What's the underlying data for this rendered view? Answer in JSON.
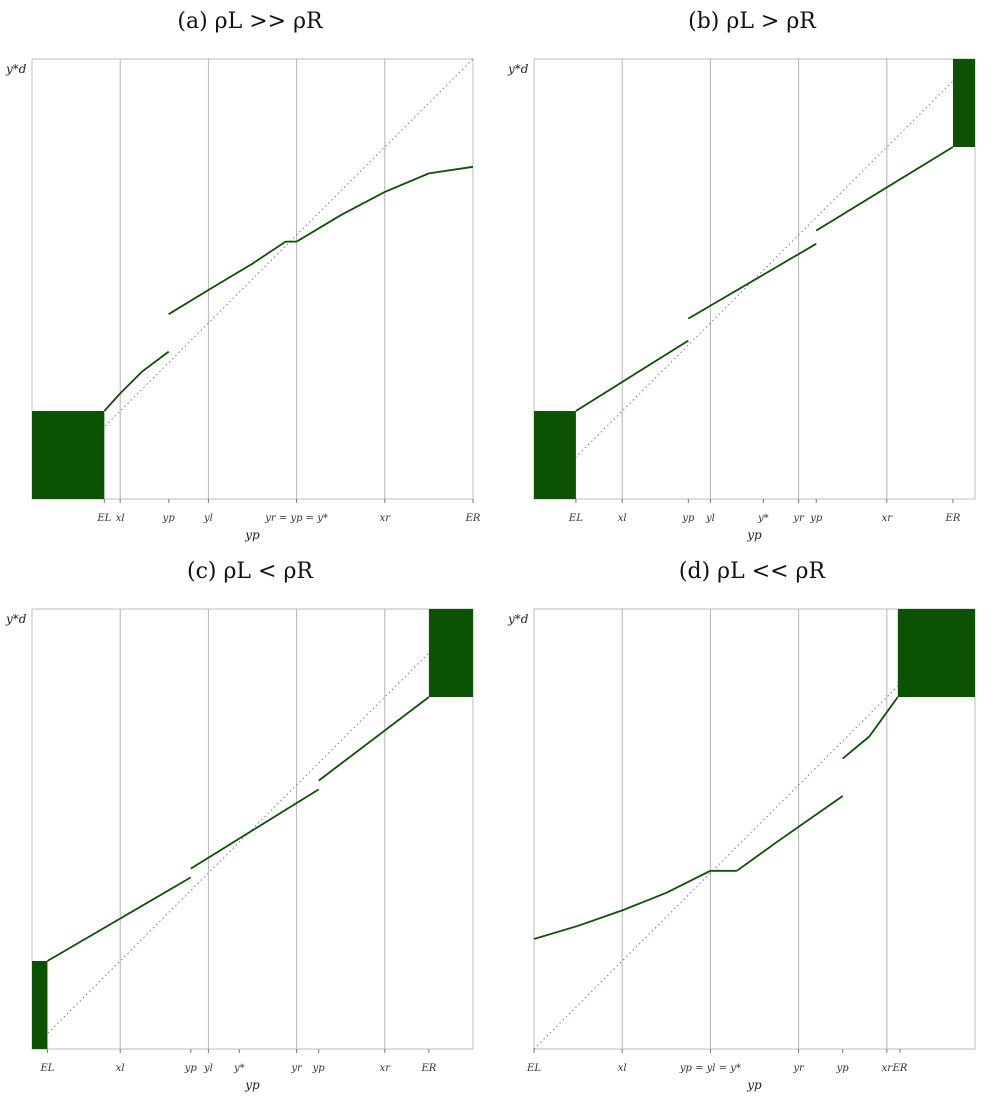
{
  "chart_data": [
    {
      "type": "line",
      "title": "(a) ρL >> ρR",
      "xlabel": "yp",
      "ylabel": "y*d",
      "xlim": [
        0,
        100
      ],
      "ylim": [
        0,
        100
      ],
      "grid_lines_x": [
        20,
        40,
        60,
        80
      ],
      "tick_labels": [
        {
          "x": 16.4,
          "text": "EL"
        },
        {
          "x": 20,
          "text": "xl"
        },
        {
          "x": 31,
          "text": "yp"
        },
        {
          "x": 40,
          "text": "yl"
        },
        {
          "x": 60,
          "text": "yr = yp = y*"
        },
        {
          "x": 80,
          "text": "xr"
        },
        {
          "x": 100,
          "text": "ER"
        }
      ],
      "rect": {
        "x0": 0,
        "x1": 16.4,
        "y0": 0,
        "y1": 20
      },
      "series": [
        {
          "points": [
            [
              16.4,
              20
            ],
            [
              20,
              24
            ],
            [
              25,
              29
            ],
            [
              31,
              33.5
            ]
          ]
        },
        {
          "points": [
            [
              31,
              42
            ],
            [
              40,
              47.5
            ],
            [
              50,
              53.5
            ],
            [
              57.5,
              58.5
            ],
            [
              60,
              58.5
            ]
          ]
        },
        {
          "points": [
            [
              60,
              58.5
            ],
            [
              70,
              64.5
            ],
            [
              80,
              69.8
            ],
            [
              90,
              74
            ],
            [
              100,
              75.5
            ]
          ]
        }
      ]
    },
    {
      "type": "line",
      "title": "(b) ρL > ρR",
      "xlabel": "yp",
      "ylabel": "y*d",
      "xlim": [
        0,
        100
      ],
      "ylim": [
        0,
        100
      ],
      "grid_lines_x": [
        20,
        40,
        60,
        80
      ],
      "tick_labels": [
        {
          "x": 9.5,
          "text": "EL"
        },
        {
          "x": 20,
          "text": "xl"
        },
        {
          "x": 35,
          "text": "yp"
        },
        {
          "x": 40,
          "text": "yl"
        },
        {
          "x": 52,
          "text": "y*"
        },
        {
          "x": 60,
          "text": "yr"
        },
        {
          "x": 64,
          "text": "yp"
        },
        {
          "x": 80,
          "text": "xr"
        },
        {
          "x": 95,
          "text": "ER"
        }
      ],
      "rects": [
        {
          "x0": 0,
          "x1": 9.5,
          "y0": 0,
          "y1": 20
        },
        {
          "x0": 95,
          "x1": 100,
          "y0": 80,
          "y1": 100
        }
      ],
      "series": [
        {
          "points": [
            [
              9.5,
              20
            ],
            [
              35,
              36
            ]
          ]
        },
        {
          "points": [
            [
              35,
              41
            ],
            [
              64,
              58
            ]
          ]
        },
        {
          "points": [
            [
              64,
              61
            ],
            [
              95,
              80
            ]
          ]
        }
      ]
    },
    {
      "type": "line",
      "title": "(c) ρL < ρR",
      "xlabel": "yp",
      "ylabel": "y*d",
      "xlim": [
        0,
        100
      ],
      "ylim": [
        0,
        100
      ],
      "grid_lines_x": [
        20,
        40,
        60,
        80
      ],
      "tick_labels": [
        {
          "x": 3.5,
          "text": "EL"
        },
        {
          "x": 20,
          "text": "xl"
        },
        {
          "x": 36,
          "text": "yp"
        },
        {
          "x": 40,
          "text": "yl"
        },
        {
          "x": 47,
          "text": "y*"
        },
        {
          "x": 60,
          "text": "yr"
        },
        {
          "x": 65,
          "text": "yp"
        },
        {
          "x": 80,
          "text": "xr"
        },
        {
          "x": 90,
          "text": "ER"
        }
      ],
      "rects": [
        {
          "x0": 0,
          "x1": 3.5,
          "y0": 0,
          "y1": 20
        },
        {
          "x0": 90,
          "x1": 100,
          "y0": 80,
          "y1": 100
        }
      ],
      "series": [
        {
          "points": [
            [
              3.5,
              20
            ],
            [
              36,
              39
            ]
          ]
        },
        {
          "points": [
            [
              36,
              41
            ],
            [
              65,
              59
            ]
          ]
        },
        {
          "points": [
            [
              65,
              61
            ],
            [
              90,
              80
            ]
          ]
        }
      ]
    },
    {
      "type": "line",
      "title": "(d) ρL << ρR",
      "xlabel": "yp",
      "ylabel": "y*d",
      "xlim": [
        0,
        100
      ],
      "ylim": [
        0,
        100
      ],
      "grid_lines_x": [
        20,
        40,
        60,
        80
      ],
      "tick_labels": [
        {
          "x": 0,
          "text": "EL"
        },
        {
          "x": 20,
          "text": "xl"
        },
        {
          "x": 40,
          "text": "yp = yl = y*"
        },
        {
          "x": 60,
          "text": "yr"
        },
        {
          "x": 70,
          "text": "yp"
        },
        {
          "x": 80,
          "text": "xr"
        },
        {
          "x": 83,
          "text": "ER"
        }
      ],
      "rect": {
        "x0": 82.5,
        "x1": 100,
        "y0": 80,
        "y1": 100
      },
      "series": [
        {
          "points": [
            [
              0,
              25
            ],
            [
              10,
              28
            ],
            [
              20,
              31.5
            ],
            [
              30,
              35.5
            ],
            [
              40,
              40.5
            ],
            [
              46,
              40.5
            ]
          ]
        },
        {
          "points": [
            [
              46,
              40.5
            ],
            [
              55,
              47
            ],
            [
              70,
              57.5
            ]
          ]
        },
        {
          "points": [
            [
              70,
              66
            ],
            [
              76,
              71
            ],
            [
              82.5,
              80
            ]
          ]
        }
      ]
    }
  ],
  "colors": {
    "fill": "#0b5203",
    "line": "#0b5203",
    "grid": "#b4b4b4",
    "diagonal": "#8c6ab0",
    "frame": "#bdbdbd"
  }
}
